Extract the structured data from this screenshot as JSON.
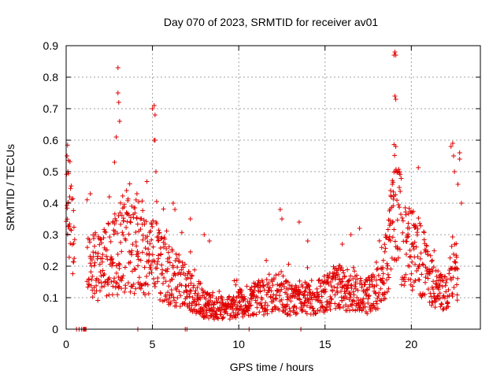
{
  "chart_data": {
    "type": "scatter",
    "title": "Day 070 of 2023, SRMTID for receiver av01",
    "xlabel": "GPS time / hours",
    "ylabel": "SRMTID / TECUs",
    "xlim": [
      0,
      24
    ],
    "ylim": [
      0,
      0.9
    ],
    "grid": true,
    "xticks": [
      0,
      5,
      10,
      15,
      20
    ],
    "yticks": [
      0,
      0.1,
      0.2,
      0.3,
      0.4,
      0.5,
      0.6,
      0.7,
      0.8,
      0.9
    ],
    "xtick_labels": [
      "0",
      "5",
      "10",
      "15",
      "20"
    ],
    "ytick_labels": [
      "0",
      "0.1",
      "0.2",
      "0.3",
      "0.4",
      "0.5",
      "0.6",
      "0.7",
      "0.8",
      "0.9"
    ],
    "marker": "+",
    "color": "#e00000",
    "series": [
      {
        "name": "SRMTID",
        "profile": [
          [
            0.0,
            0.3
          ],
          [
            0.1,
            0.42
          ],
          [
            0.3,
            0.3
          ],
          [
            0.5,
            0.24
          ],
          [
            1.0,
            0.17
          ],
          [
            1.5,
            0.2
          ],
          [
            2.0,
            0.2
          ],
          [
            2.5,
            0.22
          ],
          [
            3.0,
            0.23
          ],
          [
            3.5,
            0.27
          ],
          [
            4.0,
            0.25
          ],
          [
            4.5,
            0.24
          ],
          [
            5.0,
            0.24
          ],
          [
            5.5,
            0.2
          ],
          [
            6.0,
            0.17
          ],
          [
            6.5,
            0.15
          ],
          [
            7.0,
            0.13
          ],
          [
            7.5,
            0.1
          ],
          [
            8.0,
            0.08
          ],
          [
            8.5,
            0.07
          ],
          [
            9.0,
            0.06
          ],
          [
            9.5,
            0.07
          ],
          [
            10.0,
            0.08
          ],
          [
            10.5,
            0.09
          ],
          [
            11.0,
            0.1
          ],
          [
            11.5,
            0.1
          ],
          [
            12.0,
            0.11
          ],
          [
            12.5,
            0.12
          ],
          [
            13.0,
            0.09
          ],
          [
            13.5,
            0.09
          ],
          [
            14.0,
            0.1
          ],
          [
            14.5,
            0.1
          ],
          [
            15.0,
            0.11
          ],
          [
            15.5,
            0.13
          ],
          [
            16.0,
            0.13
          ],
          [
            16.5,
            0.12
          ],
          [
            17.0,
            0.11
          ],
          [
            17.5,
            0.11
          ],
          [
            18.0,
            0.13
          ],
          [
            18.5,
            0.2
          ],
          [
            18.8,
            0.3
          ],
          [
            19.0,
            0.38
          ],
          [
            19.3,
            0.33
          ],
          [
            19.6,
            0.28
          ],
          [
            20.0,
            0.26
          ],
          [
            20.5,
            0.23
          ],
          [
            21.0,
            0.19
          ],
          [
            21.5,
            0.12
          ],
          [
            22.0,
            0.11
          ],
          [
            22.4,
            0.2
          ],
          [
            22.7,
            0.18
          ]
        ],
        "spikes": [
          [
            0.05,
            0.55
          ],
          [
            0.1,
            0.5
          ],
          [
            0.2,
            0.42
          ],
          [
            1.4,
            0.43
          ],
          [
            2.5,
            0.42
          ],
          [
            2.8,
            0.53
          ],
          [
            2.9,
            0.61
          ],
          [
            3.0,
            0.83
          ],
          [
            3.0,
            0.75
          ],
          [
            3.05,
            0.72
          ],
          [
            3.1,
            0.66
          ],
          [
            3.5,
            0.44
          ],
          [
            4.1,
            0.43
          ],
          [
            5.0,
            0.7
          ],
          [
            5.1,
            0.71
          ],
          [
            5.15,
            0.68
          ],
          [
            5.1,
            0.6
          ],
          [
            5.15,
            0.6
          ],
          [
            5.2,
            0.5
          ],
          [
            6.2,
            0.4
          ],
          [
            6.3,
            0.38
          ],
          [
            7.2,
            0.35
          ],
          [
            8.0,
            0.3
          ],
          [
            8.3,
            0.28
          ],
          [
            12.4,
            0.38
          ],
          [
            12.5,
            0.35
          ],
          [
            13.5,
            0.34
          ],
          [
            14.0,
            0.28
          ],
          [
            16.0,
            0.27
          ],
          [
            16.5,
            0.3
          ],
          [
            17.0,
            0.32
          ],
          [
            18.8,
            0.44
          ],
          [
            18.9,
            0.46
          ],
          [
            19.0,
            0.87
          ],
          [
            19.05,
            0.88
          ],
          [
            19.1,
            0.87
          ],
          [
            19.05,
            0.74
          ],
          [
            19.1,
            0.73
          ],
          [
            19.1,
            0.58
          ],
          [
            19.2,
            0.5
          ],
          [
            19.3,
            0.45
          ],
          [
            22.3,
            0.58
          ],
          [
            22.4,
            0.59
          ],
          [
            22.45,
            0.55
          ],
          [
            22.5,
            0.5
          ],
          [
            22.7,
            0.46
          ],
          [
            22.8,
            0.56
          ],
          [
            22.8,
            0.54
          ],
          [
            22.9,
            0.4
          ]
        ],
        "zeros": [
          0.6,
          0.75,
          0.9,
          1.0,
          1.05,
          1.1,
          1.15,
          4.15,
          6.9,
          7.0,
          10.6,
          13.6
        ]
      }
    ]
  }
}
